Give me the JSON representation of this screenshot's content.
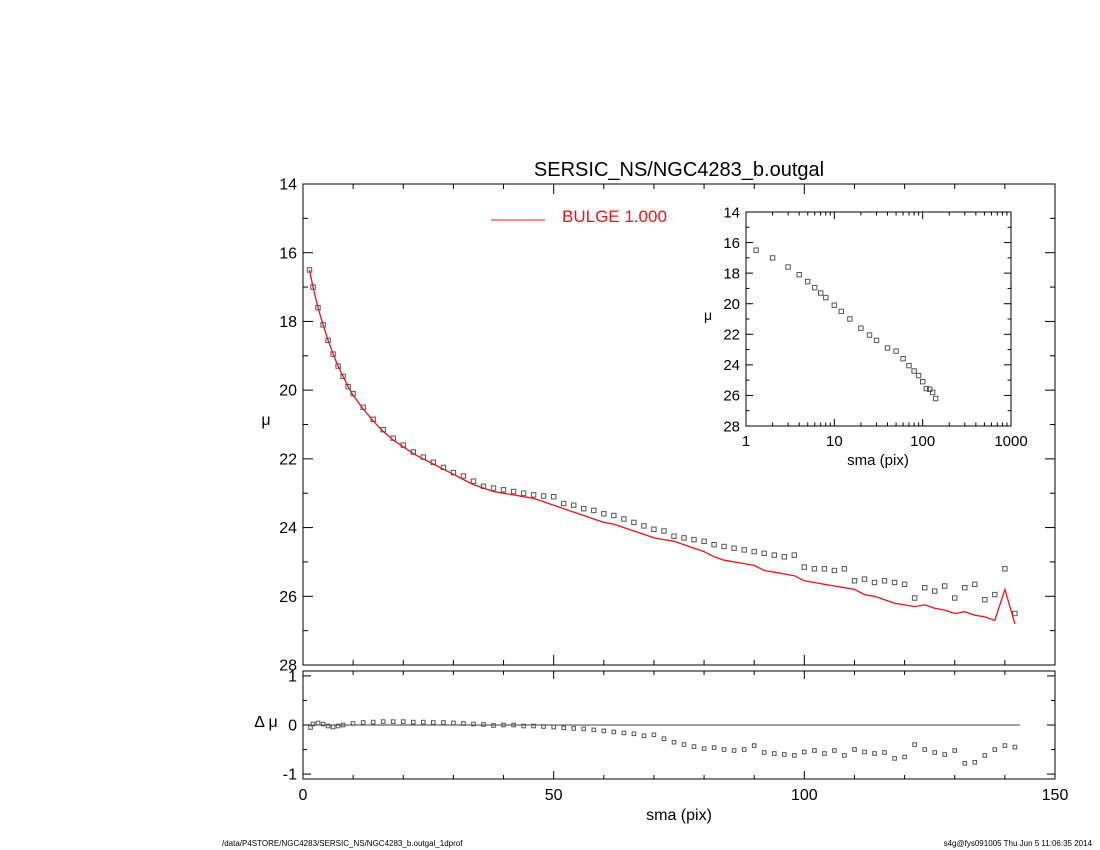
{
  "chart_data": [
    {
      "id": "main",
      "type": "scatter",
      "title": "SERSIC_NS/NGC4283_b.outgal",
      "xlabel": "",
      "ylabel": "μ",
      "xlim": [
        0,
        150
      ],
      "ylim": [
        28,
        14
      ],
      "y_inverted": true,
      "xticks": [
        0,
        50,
        100,
        150
      ],
      "yticks": [
        14,
        16,
        18,
        20,
        22,
        24,
        26,
        28
      ],
      "legend": {
        "placement": "top-center",
        "label": "BULGE  1.000",
        "color": "#e8141b"
      },
      "series": [
        {
          "kind": "points",
          "color": "#555555",
          "x": [
            1.3,
            2,
            3,
            4,
            5,
            6,
            7,
            8,
            9,
            10,
            12,
            14,
            16,
            18,
            20,
            22,
            24,
            26,
            28,
            30,
            32,
            34,
            36,
            38,
            40,
            42,
            44,
            46,
            48,
            50,
            52,
            54,
            56,
            58,
            60,
            62,
            64,
            66,
            68,
            70,
            72,
            74,
            76,
            78,
            80,
            82,
            84,
            86,
            88,
            90,
            92,
            94,
            96,
            98,
            100,
            102,
            104,
            106,
            108,
            110,
            112,
            114,
            116,
            118,
            120,
            122,
            124,
            126,
            128,
            130,
            132,
            134,
            136,
            138,
            140,
            142
          ],
          "y": [
            16.5,
            17.0,
            17.6,
            18.1,
            18.55,
            18.95,
            19.3,
            19.6,
            19.9,
            20.1,
            20.5,
            20.85,
            21.15,
            21.4,
            21.6,
            21.8,
            21.95,
            22.1,
            22.25,
            22.4,
            22.5,
            22.65,
            22.8,
            22.85,
            22.9,
            22.95,
            23.0,
            23.05,
            23.08,
            23.1,
            23.3,
            23.35,
            23.45,
            23.5,
            23.6,
            23.65,
            23.75,
            23.85,
            23.95,
            24.05,
            24.1,
            24.25,
            24.3,
            24.35,
            24.4,
            24.5,
            24.55,
            24.6,
            24.65,
            24.7,
            24.75,
            24.8,
            24.85,
            24.8,
            25.15,
            25.2,
            25.2,
            25.25,
            25.2,
            25.55,
            25.5,
            25.6,
            25.55,
            25.6,
            25.65,
            26.05,
            25.75,
            25.85,
            25.7,
            26.05,
            25.75,
            25.65,
            26.1,
            25.95,
            25.2,
            26.5
          ]
        },
        {
          "kind": "line",
          "name": "BULGE  1.000",
          "color": "#e8141b",
          "x": [
            1.3,
            2,
            3,
            4,
            5,
            6,
            7,
            8,
            9,
            10,
            12,
            14,
            16,
            18,
            20,
            22,
            24,
            26,
            28,
            30,
            32,
            34,
            36,
            38,
            40,
            42,
            44,
            46,
            48,
            50,
            52,
            54,
            56,
            58,
            60,
            62,
            64,
            66,
            68,
            70,
            72,
            74,
            76,
            78,
            80,
            82,
            84,
            86,
            88,
            90,
            92,
            94,
            96,
            98,
            100,
            102,
            104,
            106,
            108,
            110,
            112,
            114,
            116,
            118,
            120,
            122,
            124,
            126,
            128,
            130,
            132,
            134,
            136,
            138,
            140,
            142
          ],
          "y": [
            16.5,
            17.0,
            17.6,
            18.1,
            18.55,
            18.95,
            19.3,
            19.6,
            19.9,
            20.15,
            20.55,
            20.9,
            21.2,
            21.45,
            21.65,
            21.85,
            22.0,
            22.15,
            22.3,
            22.45,
            22.6,
            22.75,
            22.85,
            22.95,
            23.0,
            23.05,
            23.1,
            23.15,
            23.25,
            23.35,
            23.45,
            23.55,
            23.65,
            23.75,
            23.85,
            23.9,
            24.0,
            24.1,
            24.2,
            24.3,
            24.35,
            24.4,
            24.5,
            24.6,
            24.7,
            24.85,
            24.95,
            25.0,
            25.05,
            25.1,
            25.25,
            25.3,
            25.35,
            25.4,
            25.55,
            25.6,
            25.65,
            25.7,
            25.75,
            25.8,
            25.95,
            26.0,
            26.1,
            26.2,
            26.25,
            26.3,
            26.25,
            26.35,
            26.4,
            26.5,
            26.45,
            26.55,
            26.6,
            26.7,
            25.8,
            26.8
          ]
        }
      ]
    },
    {
      "id": "inset",
      "type": "scatter",
      "xlabel": "sma (pix)",
      "ylabel": "μ",
      "xscale": "log",
      "xlim": [
        1,
        1000
      ],
      "ylim": [
        28,
        14
      ],
      "y_inverted": true,
      "xticks": [
        1,
        10,
        100,
        1000
      ],
      "xtick_labels": [
        "1",
        "10",
        "100",
        "1000"
      ],
      "yticks": [
        14,
        16,
        18,
        20,
        22,
        24,
        26,
        28
      ],
      "series": [
        {
          "kind": "points",
          "color": "#555555",
          "x": [
            1.3,
            2,
            3,
            4,
            5,
            6,
            7,
            8,
            10,
            12,
            15,
            20,
            25,
            30,
            40,
            50,
            60,
            70,
            80,
            90,
            100,
            110,
            120,
            130,
            140
          ],
          "y": [
            16.5,
            17.0,
            17.6,
            18.1,
            18.55,
            18.95,
            19.3,
            19.6,
            20.1,
            20.5,
            21.0,
            21.6,
            22.05,
            22.4,
            22.9,
            23.1,
            23.6,
            24.05,
            24.4,
            24.7,
            25.1,
            25.55,
            25.6,
            25.8,
            26.2
          ]
        }
      ]
    },
    {
      "id": "residual",
      "type": "scatter",
      "xlabel": "sma (pix)",
      "ylabel": "Δ μ",
      "xlim": [
        0,
        150
      ],
      "ylim": [
        -1.1,
        1.1
      ],
      "xticks": [
        0,
        50,
        100,
        150
      ],
      "yticks": [
        -1,
        0,
        1
      ],
      "reference_line": 0,
      "series": [
        {
          "kind": "points",
          "color": "#555555",
          "x": [
            1.5,
            2,
            3,
            4,
            5,
            6,
            7,
            8,
            10,
            12,
            14,
            16,
            18,
            20,
            22,
            24,
            26,
            28,
            30,
            32,
            34,
            36,
            38,
            40,
            42,
            44,
            46,
            48,
            50,
            52,
            54,
            56,
            58,
            60,
            62,
            64,
            66,
            68,
            70,
            72,
            74,
            76,
            78,
            80,
            82,
            84,
            86,
            88,
            90,
            92,
            94,
            96,
            98,
            100,
            102,
            104,
            106,
            108,
            110,
            112,
            114,
            116,
            118,
            120,
            122,
            124,
            126,
            128,
            130,
            132,
            134,
            136,
            138,
            140,
            142
          ],
          "y": [
            -0.05,
            0.02,
            0.04,
            0.02,
            -0.02,
            -0.04,
            -0.02,
            0.0,
            0.03,
            0.05,
            0.06,
            0.07,
            0.07,
            0.07,
            0.06,
            0.06,
            0.05,
            0.05,
            0.04,
            0.03,
            0.02,
            0.01,
            -0.01,
            0.0,
            0.0,
            -0.02,
            -0.02,
            -0.03,
            -0.04,
            -0.06,
            -0.07,
            -0.08,
            -0.1,
            -0.12,
            -0.14,
            -0.16,
            -0.18,
            -0.22,
            -0.2,
            -0.28,
            -0.35,
            -0.4,
            -0.44,
            -0.48,
            -0.46,
            -0.5,
            -0.52,
            -0.5,
            -0.42,
            -0.56,
            -0.58,
            -0.6,
            -0.62,
            -0.55,
            -0.52,
            -0.58,
            -0.52,
            -0.62,
            -0.5,
            -0.55,
            -0.58,
            -0.56,
            -0.68,
            -0.65,
            -0.4,
            -0.5,
            -0.56,
            -0.6,
            -0.52,
            -0.78,
            -0.76,
            -0.62,
            -0.5,
            -0.42,
            -0.45
          ]
        }
      ]
    }
  ],
  "footer": {
    "left": "/data/P4STORE/NGC4283/SERSIC_NS/NGC4283_b.outgal_1dprof",
    "right": "s4g@fys091005  Thu Jun  5 11:06:35 2014"
  }
}
